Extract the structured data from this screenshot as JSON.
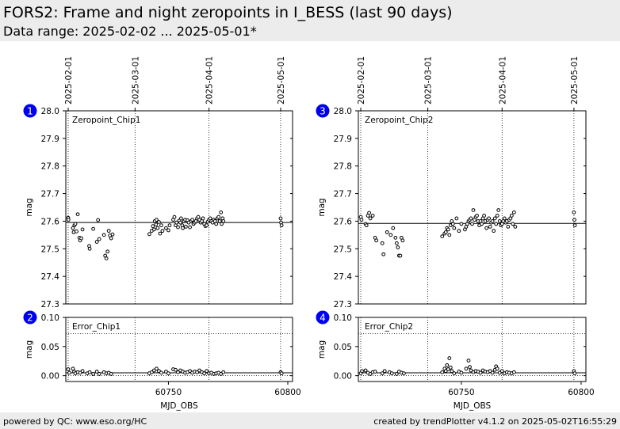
{
  "header": {
    "title": "FORS2: Frame and night zeropoints in I_BESS (last 90 days)",
    "subtitle": "Data range: 2025-02-02 ... 2025-05-01*"
  },
  "footer": {
    "left": "powered by QC: www.eso.org/HC",
    "right": "created by trendPlotter v4.1.2 on 2025-05-02T16:55:29"
  },
  "chart_data": [
    {
      "type": "scatter",
      "badge": "1",
      "label": "Zeropoint_Chip1",
      "ylabel": "mag",
      "ylim": [
        27.3,
        28.0
      ],
      "yticks": [
        "28.0",
        "27.9",
        "27.8",
        "27.7",
        "27.6",
        "27.5",
        "27.4",
        "27.3"
      ],
      "xlim": [
        60707,
        60802
      ],
      "reference_line": 27.595,
      "date_lines": [
        {
          "mjd": 60708,
          "label": "2025-02-01"
        },
        {
          "mjd": 60736,
          "label": "2025-03-01"
        },
        {
          "mjd": 60767,
          "label": "2025-04-01"
        },
        {
          "mjd": 60797,
          "label": "2025-05-01"
        }
      ],
      "x": [
        60708.0,
        60708.1,
        60710.0,
        60710.3,
        60710.6,
        60711.0,
        60711.5,
        60712.0,
        60712.7,
        60713.0,
        60713.5,
        60714.0,
        60716.8,
        60717.0,
        60718.5,
        60720.0,
        60720.5,
        60721.0,
        60723.0,
        60723.5,
        60724.0,
        60724.5,
        60725.0,
        60725.5,
        60726.0,
        60726.6,
        60742.0,
        60743.0,
        60743.5,
        60744.0,
        60744.3,
        60744.8,
        60745.0,
        60745.5,
        60746.0,
        60746.5,
        60747.0,
        60747.5,
        60749.0,
        60750.0,
        60750.5,
        60752.0,
        60752.5,
        60753.0,
        60753.4,
        60754.0,
        60754.5,
        60755.0,
        60755.3,
        60755.8,
        60756.0,
        60756.5,
        60757.0,
        60757.3,
        60758.0,
        60758.5,
        60759.0,
        60759.5,
        60760.0,
        60760.5,
        60761.0,
        60761.5,
        60762.0,
        60762.5,
        60763.0,
        60763.5,
        60764.0,
        60764.5,
        60765.0,
        60765.5,
        60766.0,
        60766.5,
        60767.0,
        60767.5,
        60768.0,
        60768.5,
        60769.0,
        60769.5,
        60770.0,
        60770.5,
        60771.0,
        60771.5,
        60772.0,
        60772.3,
        60772.7,
        60773.0,
        60797.0,
        60797.2,
        60797.4
      ],
      "y": [
        27.612,
        27.605,
        27.575,
        27.56,
        27.585,
        27.59,
        27.563,
        27.625,
        27.54,
        27.53,
        27.538,
        27.57,
        27.51,
        27.5,
        27.572,
        27.525,
        27.604,
        27.535,
        27.55,
        27.475,
        27.465,
        27.49,
        27.565,
        27.548,
        27.538,
        27.552,
        27.553,
        27.565,
        27.582,
        27.57,
        27.6,
        27.588,
        27.605,
        27.575,
        27.597,
        27.555,
        27.585,
        27.565,
        27.575,
        27.567,
        27.585,
        27.605,
        27.615,
        27.585,
        27.595,
        27.578,
        27.602,
        27.595,
        27.61,
        27.585,
        27.575,
        27.6,
        27.605,
        27.58,
        27.603,
        27.595,
        27.578,
        27.6,
        27.605,
        27.59,
        27.595,
        27.6,
        27.61,
        27.615,
        27.605,
        27.595,
        27.6,
        27.61,
        27.59,
        27.582,
        27.585,
        27.598,
        27.605,
        27.61,
        27.6,
        27.595,
        27.605,
        27.6,
        27.59,
        27.61,
        27.615,
        27.6,
        27.632,
        27.59,
        27.61,
        27.6,
        27.61,
        27.595,
        27.585
      ]
    },
    {
      "type": "scatter",
      "badge": "2",
      "label": "Error_Chip1",
      "ylabel": "mag",
      "xlabel": "MJD_OBS",
      "ylim": [
        -0.01,
        0.1
      ],
      "yticks": [
        "0.10",
        "0.05",
        "0.00"
      ],
      "xlim": [
        60707,
        60802
      ],
      "xticks": [
        "60750",
        "60800"
      ],
      "reference_lines": [
        0.005,
        0.0,
        0.072
      ],
      "x": [
        60708.0,
        60708.5,
        60710.0,
        60710.5,
        60711.0,
        60712.0,
        60713.0,
        60714.0,
        60716.0,
        60717.0,
        60718.5,
        60720.0,
        60721.0,
        60723.0,
        60724.0,
        60725.0,
        60726.0,
        60742.0,
        60743.0,
        60744.0,
        60745.0,
        60746.0,
        60747.0,
        60749.0,
        60750.0,
        60752.0,
        60753.0,
        60754.0,
        60755.0,
        60756.0,
        60757.0,
        60758.0,
        60759.0,
        60760.0,
        60761.0,
        60762.0,
        60763.0,
        60764.0,
        60765.0,
        60766.0,
        60767.0,
        60768.0,
        60769.0,
        60770.0,
        60771.0,
        60772.0,
        60773.0,
        60797.0,
        60797.4
      ],
      "y": [
        0.011,
        0.005,
        0.012,
        0.007,
        0.004,
        0.006,
        0.005,
        0.008,
        0.004,
        0.006,
        0.003,
        0.007,
        0.003,
        0.006,
        0.004,
        0.005,
        0.003,
        0.004,
        0.006,
        0.009,
        0.012,
        0.008,
        0.005,
        0.007,
        0.004,
        0.011,
        0.01,
        0.006,
        0.009,
        0.007,
        0.005,
        0.006,
        0.008,
        0.005,
        0.007,
        0.006,
        0.009,
        0.006,
        0.004,
        0.008,
        0.004,
        0.005,
        0.003,
        0.004,
        0.005,
        0.003,
        0.006,
        0.006,
        0.004
      ]
    },
    {
      "type": "scatter",
      "badge": "3",
      "label": "Zeropoint_Chip2",
      "ylabel": "mag",
      "ylim": [
        27.3,
        28.0
      ],
      "yticks": [
        "28.0",
        "27.9",
        "27.8",
        "27.7",
        "27.6",
        "27.5",
        "27.4",
        "27.3"
      ],
      "xlim": [
        60707,
        60802
      ],
      "reference_line": 27.592,
      "date_lines": [
        {
          "mjd": 60708,
          "label": "2025-02-01"
        },
        {
          "mjd": 60736,
          "label": "2025-03-01"
        },
        {
          "mjd": 60767,
          "label": "2025-04-01"
        },
        {
          "mjd": 60797,
          "label": "2025-05-01"
        }
      ],
      "x": [
        60708.0,
        60708.3,
        60710.0,
        60710.4,
        60711.0,
        60711.5,
        60712.0,
        60713.0,
        60714.0,
        60714.5,
        60717.0,
        60717.5,
        60719.0,
        60720.5,
        60721.5,
        60722.5,
        60723.0,
        60723.5,
        60724.0,
        60724.5,
        60725.0,
        60725.5,
        60742.0,
        60743.0,
        60743.5,
        60744.0,
        60744.5,
        60745.0,
        60745.5,
        60746.0,
        60746.5,
        60747.0,
        60748.0,
        60749.0,
        60750.0,
        60751.5,
        60752.0,
        60752.5,
        60753.0,
        60753.5,
        60754.0,
        60754.5,
        60755.0,
        60755.5,
        60756.0,
        60756.5,
        60757.0,
        60757.5,
        60758.0,
        60758.5,
        60759.0,
        60759.5,
        60760.0,
        60760.5,
        60761.0,
        60761.5,
        60762.0,
        60762.5,
        60763.0,
        60763.5,
        60764.0,
        60764.5,
        60765.0,
        60765.5,
        60766.0,
        60766.5,
        60767.0,
        60767.5,
        60768.0,
        60768.5,
        60769.0,
        60769.5,
        60770.0,
        60770.5,
        60771.0,
        60771.5,
        60772.0,
        60772.5,
        60797.0,
        60797.2,
        60797.4
      ],
      "y": [
        27.615,
        27.605,
        27.59,
        27.585,
        27.62,
        27.63,
        27.61,
        27.62,
        27.54,
        27.53,
        27.52,
        27.48,
        27.56,
        27.55,
        27.575,
        27.54,
        27.52,
        27.505,
        27.475,
        27.475,
        27.54,
        27.53,
        27.545,
        27.555,
        27.56,
        27.575,
        27.57,
        27.55,
        27.585,
        27.6,
        27.59,
        27.575,
        27.61,
        27.565,
        27.59,
        27.57,
        27.58,
        27.59,
        27.6,
        27.605,
        27.61,
        27.59,
        27.64,
        27.605,
        27.615,
        27.62,
        27.6,
        27.585,
        27.6,
        27.59,
        27.61,
        27.62,
        27.6,
        27.575,
        27.605,
        27.61,
        27.58,
        27.595,
        27.6,
        27.565,
        27.61,
        27.59,
        27.62,
        27.64,
        27.6,
        27.585,
        27.59,
        27.6,
        27.61,
        27.595,
        27.6,
        27.58,
        27.605,
        27.61,
        27.62,
        27.59,
        27.632,
        27.58,
        27.632,
        27.605,
        27.585
      ]
    },
    {
      "type": "scatter",
      "badge": "4",
      "label": "Error_Chip2",
      "ylabel": "mag",
      "xlabel": "MJD_OBS",
      "ylim": [
        -0.01,
        0.1
      ],
      "yticks": [
        "0.10",
        "0.05",
        "0.00"
      ],
      "xlim": [
        60707,
        60802
      ],
      "xticks": [
        "60750",
        "60800"
      ],
      "reference_lines": [
        0.005,
        0.0,
        0.072
      ],
      "x": [
        60708.0,
        60708.5,
        60710.0,
        60711.0,
        60712.0,
        60713.0,
        60714.0,
        60717.0,
        60718.0,
        60720.0,
        60721.0,
        60723.0,
        60724.0,
        60725.0,
        60726.0,
        60742.0,
        60743.0,
        60743.5,
        60744.0,
        60744.5,
        60745.0,
        60745.5,
        60746.0,
        60747.0,
        60749.0,
        60750.0,
        60752.0,
        60753.0,
        60753.5,
        60754.0,
        60755.0,
        60756.0,
        60757.0,
        60758.0,
        60759.0,
        60760.0,
        60761.0,
        60762.0,
        60763.0,
        60764.0,
        60764.5,
        60765.0,
        60766.0,
        60767.0,
        60768.0,
        60769.0,
        60770.0,
        60771.0,
        60772.0,
        60797.0,
        60797.3
      ],
      "y": [
        0.004,
        0.008,
        0.009,
        0.005,
        0.003,
        0.006,
        0.007,
        0.004,
        0.008,
        0.006,
        0.004,
        0.003,
        0.007,
        0.005,
        0.004,
        0.006,
        0.012,
        0.008,
        0.018,
        0.011,
        0.03,
        0.014,
        0.008,
        0.004,
        0.007,
        0.005,
        0.012,
        0.026,
        0.015,
        0.009,
        0.006,
        0.008,
        0.007,
        0.005,
        0.009,
        0.007,
        0.006,
        0.008,
        0.005,
        0.01,
        0.016,
        0.012,
        0.005,
        0.008,
        0.004,
        0.006,
        0.005,
        0.004,
        0.006,
        0.008,
        0.004
      ]
    }
  ]
}
